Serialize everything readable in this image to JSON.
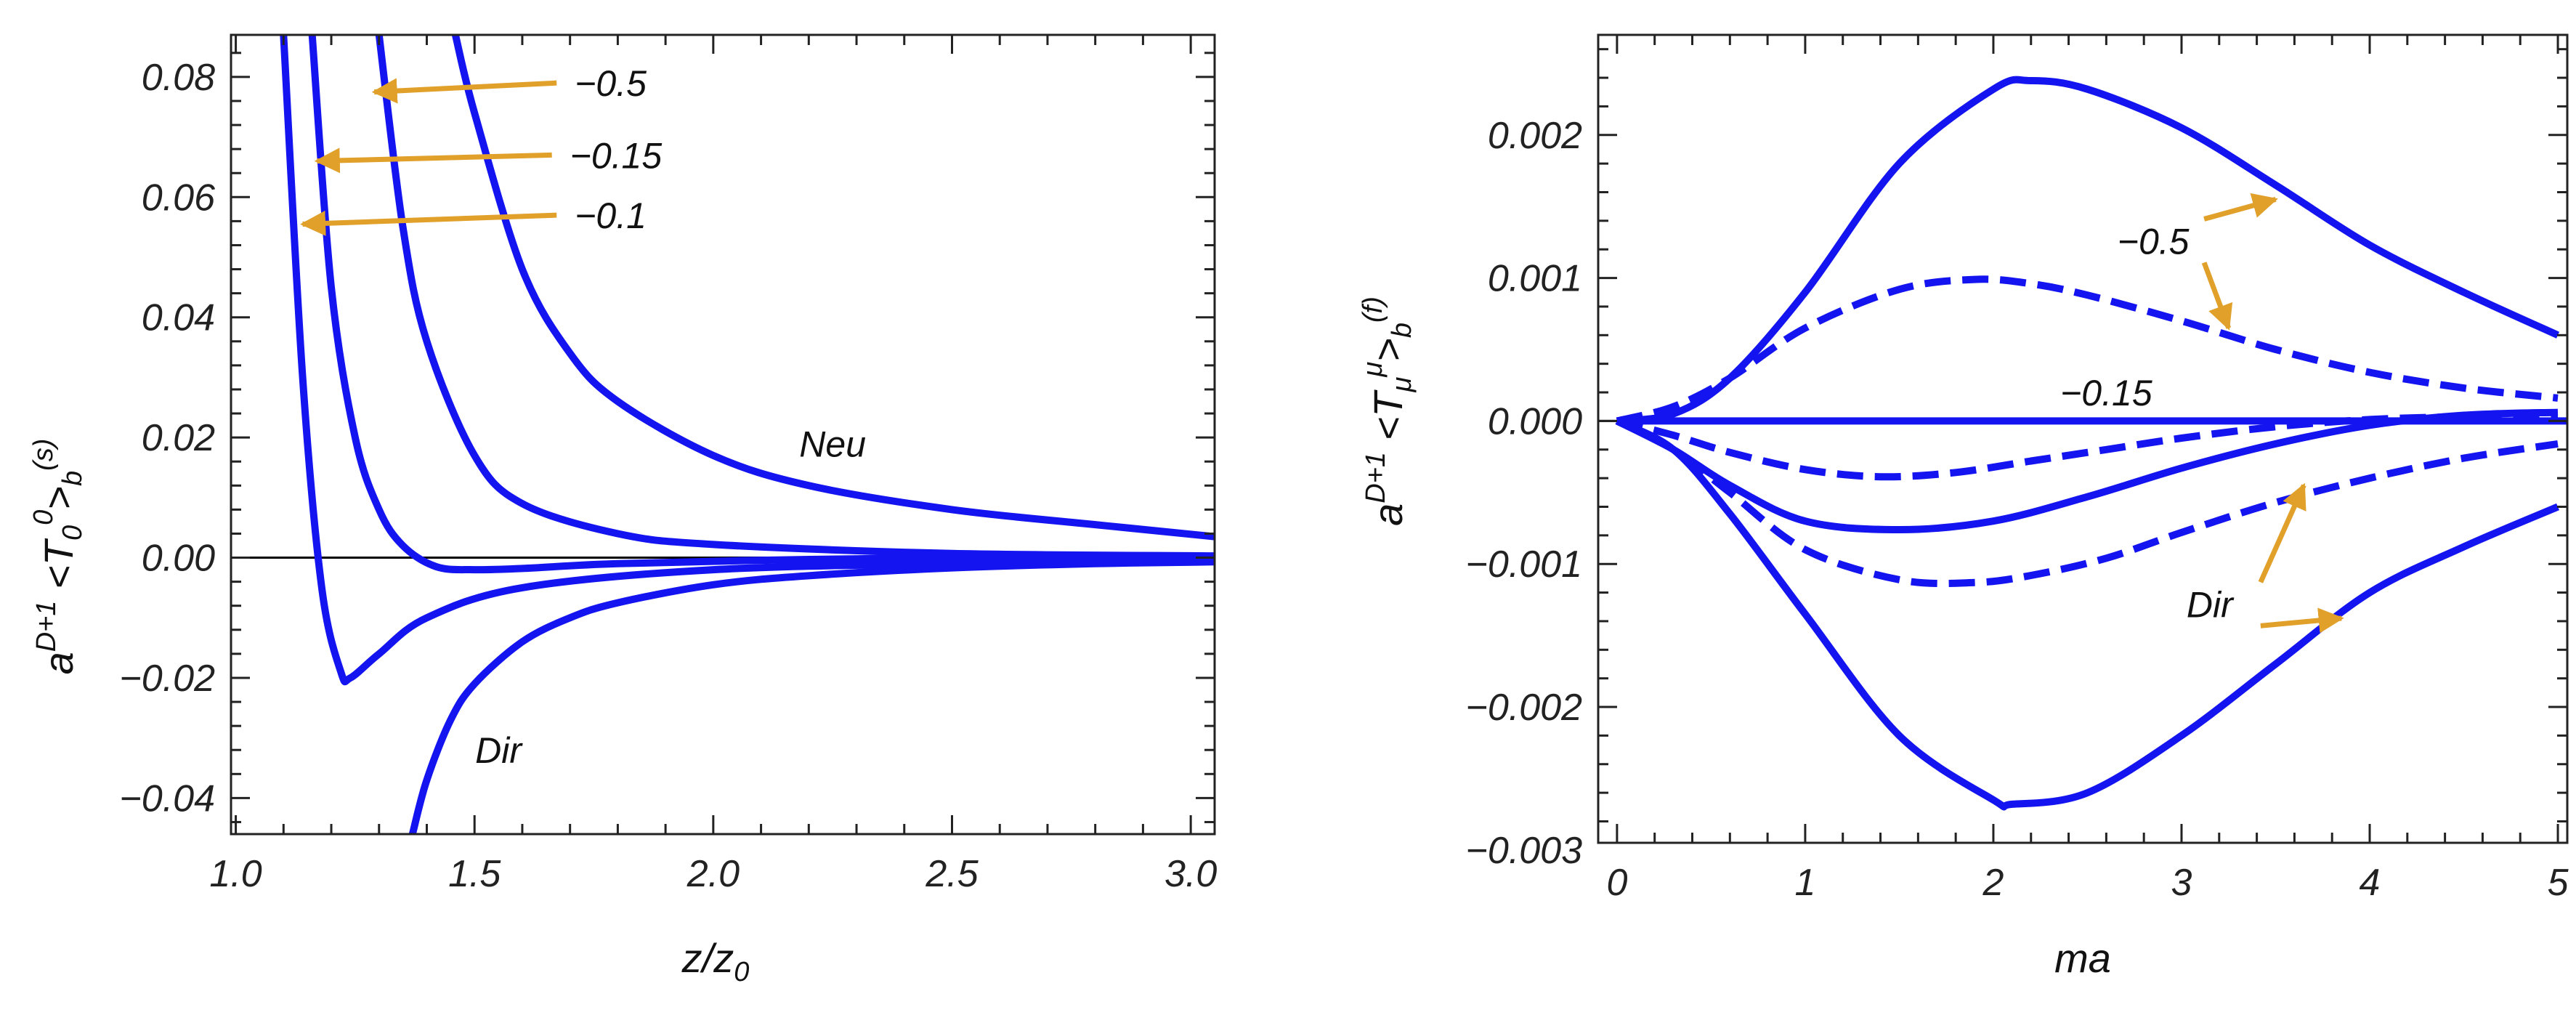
{
  "figure": {
    "colors": {
      "curve": "#1414f0",
      "arrow": "#e0a02a",
      "frame": "#222222",
      "zero_line": "#000000"
    }
  },
  "chart_data": [
    {
      "type": "line",
      "title": "",
      "xlabel": "z/z0",
      "ylabel": "a^(D+1) <T0^0>b^(s)",
      "xlim": [
        0.99,
        3.05
      ],
      "ylim": [
        -0.046,
        0.087
      ],
      "xticks": [
        1.0,
        1.5,
        2.0,
        2.5,
        3.0
      ],
      "xtick_labels": [
        "1.0",
        "1.5",
        "2.0",
        "2.5",
        "3.0"
      ],
      "yticks": [
        0.08,
        0.06,
        0.04,
        0.02,
        0.0,
        -0.02,
        -0.04
      ],
      "ytick_labels": [
        "0.08",
        "0.06",
        "0.04",
        "0.02",
        "0.00",
        "−0.02",
        "−0.04"
      ],
      "grid": false,
      "series": [
        {
          "name": "",
          "style": "solid",
          "x": [
            1.1,
            1.14,
            1.18,
            1.22,
            1.24,
            1.3,
            1.4,
            1.6,
            2.0,
            2.5,
            3.05
          ],
          "y": [
            0.087,
            0.03,
            -0.005,
            -0.019,
            -0.02,
            -0.016,
            -0.01,
            -0.005,
            -0.002,
            -0.001,
            -0.0005
          ]
        },
        {
          "name": "",
          "style": "solid",
          "x": [
            1.16,
            1.2,
            1.25,
            1.3,
            1.35,
            1.42,
            1.5,
            1.6,
            1.8,
            2.2,
            2.6,
            3.05
          ],
          "y": [
            0.087,
            0.045,
            0.02,
            0.008,
            0.002,
            -0.0015,
            -0.002,
            -0.0018,
            -0.001,
            -0.0003,
            0.0,
            0.0
          ]
        },
        {
          "name": "",
          "style": "solid",
          "x": [
            1.3,
            1.35,
            1.4,
            1.5,
            1.6,
            1.8,
            2.0,
            2.5,
            3.05
          ],
          "y": [
            0.087,
            0.055,
            0.036,
            0.017,
            0.009,
            0.004,
            0.0022,
            0.0007,
            0.0003
          ]
        },
        {
          "name": "",
          "style": "solid",
          "x": [
            1.46,
            1.5,
            1.6,
            1.7,
            1.8,
            2.0,
            2.2,
            2.5,
            2.8,
            3.05
          ],
          "y": [
            0.087,
            0.074,
            0.048,
            0.034,
            0.026,
            0.017,
            0.012,
            0.008,
            0.0055,
            0.0035
          ]
        },
        {
          "name": "",
          "style": "solid",
          "x": [
            1.37,
            1.4,
            1.45,
            1.5,
            1.6,
            1.7,
            1.8,
            2.0,
            2.2,
            2.5,
            2.8,
            3.05
          ],
          "y": [
            -0.046,
            -0.037,
            -0.027,
            -0.021,
            -0.014,
            -0.01,
            -0.0075,
            -0.0045,
            -0.003,
            -0.0017,
            -0.001,
            -0.0007
          ]
        }
      ],
      "annotations": [
        {
          "text": "−0.5",
          "arrow": true,
          "x": 1.71,
          "y": 0.079,
          "arrow_to": [
            1.29,
            0.0775
          ]
        },
        {
          "text": "−0.15",
          "arrow": true,
          "x": 1.7,
          "y": 0.067,
          "arrow_to": [
            1.17,
            0.066
          ]
        },
        {
          "text": "−0.1",
          "arrow": true,
          "x": 1.71,
          "y": 0.057,
          "arrow_to": [
            1.14,
            0.0555
          ]
        },
        {
          "text": "Neu",
          "arrow": false,
          "x": 2.25,
          "y": 0.019
        },
        {
          "text": "Dir",
          "arrow": false,
          "x": 1.55,
          "y": -0.032
        }
      ]
    },
    {
      "type": "line",
      "title": "",
      "xlabel": "ma",
      "ylabel": "a^(D+1) <Tμ^μ>b^(f)",
      "xlim": [
        -0.1,
        5.05
      ],
      "ylim": [
        -0.00295,
        0.0027
      ],
      "xticks": [
        0,
        1,
        2,
        3,
        4,
        5
      ],
      "xtick_labels": [
        "0",
        "1",
        "2",
        "3",
        "4",
        "5"
      ],
      "yticks": [
        0.002,
        0.001,
        0.0,
        -0.001,
        -0.002,
        -0.003
      ],
      "ytick_labels": [
        "0.002",
        "0.001",
        "0.000",
        "−0.001",
        "−0.002",
        "−0.003"
      ],
      "grid": false,
      "series": [
        {
          "name": "",
          "style": "solid",
          "x": [
            0,
            0.3,
            0.6,
            1.0,
            1.5,
            2.0,
            2.2,
            2.5,
            3.0,
            3.5,
            4.0,
            4.5,
            5.0
          ],
          "y": [
            0,
            5e-05,
            0.0003,
            0.0009,
            0.0018,
            0.00232,
            0.00238,
            0.00232,
            0.00205,
            0.00165,
            0.00123,
            0.0009,
            0.0006
          ]
        },
        {
          "name": "",
          "style": "dashed",
          "x": [
            0,
            0.3,
            0.6,
            1.0,
            1.5,
            1.9,
            2.2,
            2.5,
            3.0,
            3.5,
            4.0,
            4.5,
            5.0
          ],
          "y": [
            0,
            0.0001,
            0.0003,
            0.00065,
            0.00092,
            0.00099,
            0.00096,
            0.00088,
            0.0007,
            0.0005,
            0.00034,
            0.00023,
            0.00016
          ]
        },
        {
          "name": "",
          "style": "dashed",
          "x": [
            0,
            0.3,
            0.6,
            1.0,
            1.4,
            1.8,
            2.2,
            2.6,
            3.0,
            3.5,
            4.0,
            4.5,
            5.0
          ],
          "y": [
            0,
            -0.0001,
            -0.00022,
            -0.00034,
            -0.00039,
            -0.00036,
            -0.00028,
            -0.0002,
            -0.00012,
            -4e-05,
            1e-05,
            3e-05,
            4e-05
          ]
        },
        {
          "name": "",
          "style": "solid",
          "x": [
            0,
            0.3,
            0.6,
            1.0,
            1.5,
            2.0,
            2.5,
            3.0,
            3.5,
            4.0,
            4.5,
            5.0
          ],
          "y": [
            0,
            -0.0002,
            -0.00045,
            -0.0007,
            -0.00076,
            -0.0007,
            -0.00053,
            -0.00033,
            -0.00016,
            -3e-05,
            4e-05,
            6e-05
          ]
        },
        {
          "name": "",
          "style": "dashed",
          "x": [
            0,
            0.3,
            0.6,
            1.0,
            1.5,
            1.9,
            2.2,
            2.6,
            3.0,
            3.5,
            4.0,
            4.5,
            5.0
          ],
          "y": [
            0,
            -0.0002,
            -0.0005,
            -0.0009,
            -0.00111,
            -0.00113,
            -0.00108,
            -0.00096,
            -0.00078,
            -0.00057,
            -0.0004,
            -0.00026,
            -0.00016
          ]
        },
        {
          "name": "",
          "style": "solid",
          "x": [
            0,
            0.3,
            0.6,
            1.0,
            1.5,
            2.0,
            2.1,
            2.5,
            3.0,
            3.5,
            4.0,
            4.5,
            5.0
          ],
          "y": [
            0,
            -0.0002,
            -0.00065,
            -0.00135,
            -0.0022,
            -0.00265,
            -0.00268,
            -0.0026,
            -0.0022,
            -0.0017,
            -0.0012,
            -0.00088,
            -0.0006
          ]
        }
      ],
      "baseline_series": {
        "style": "solid",
        "x": [
          0,
          5.05
        ],
        "y": [
          0,
          0
        ]
      },
      "annotations": [
        {
          "text": "−0.5",
          "arrow": true,
          "x": 2.85,
          "y": 0.00126,
          "arrows_to": [
            [
              3.5,
              0.00155
            ],
            [
              3.25,
              0.00065
            ]
          ]
        },
        {
          "text": "−0.15",
          "arrow": false,
          "x": 2.6,
          "y": 0.0002
        },
        {
          "text": "Dir",
          "arrow": true,
          "x": 3.15,
          "y": -0.00128,
          "arrows_to": [
            [
              3.65,
              -0.00045
            ],
            [
              3.85,
              -0.00138
            ]
          ]
        }
      ]
    }
  ]
}
